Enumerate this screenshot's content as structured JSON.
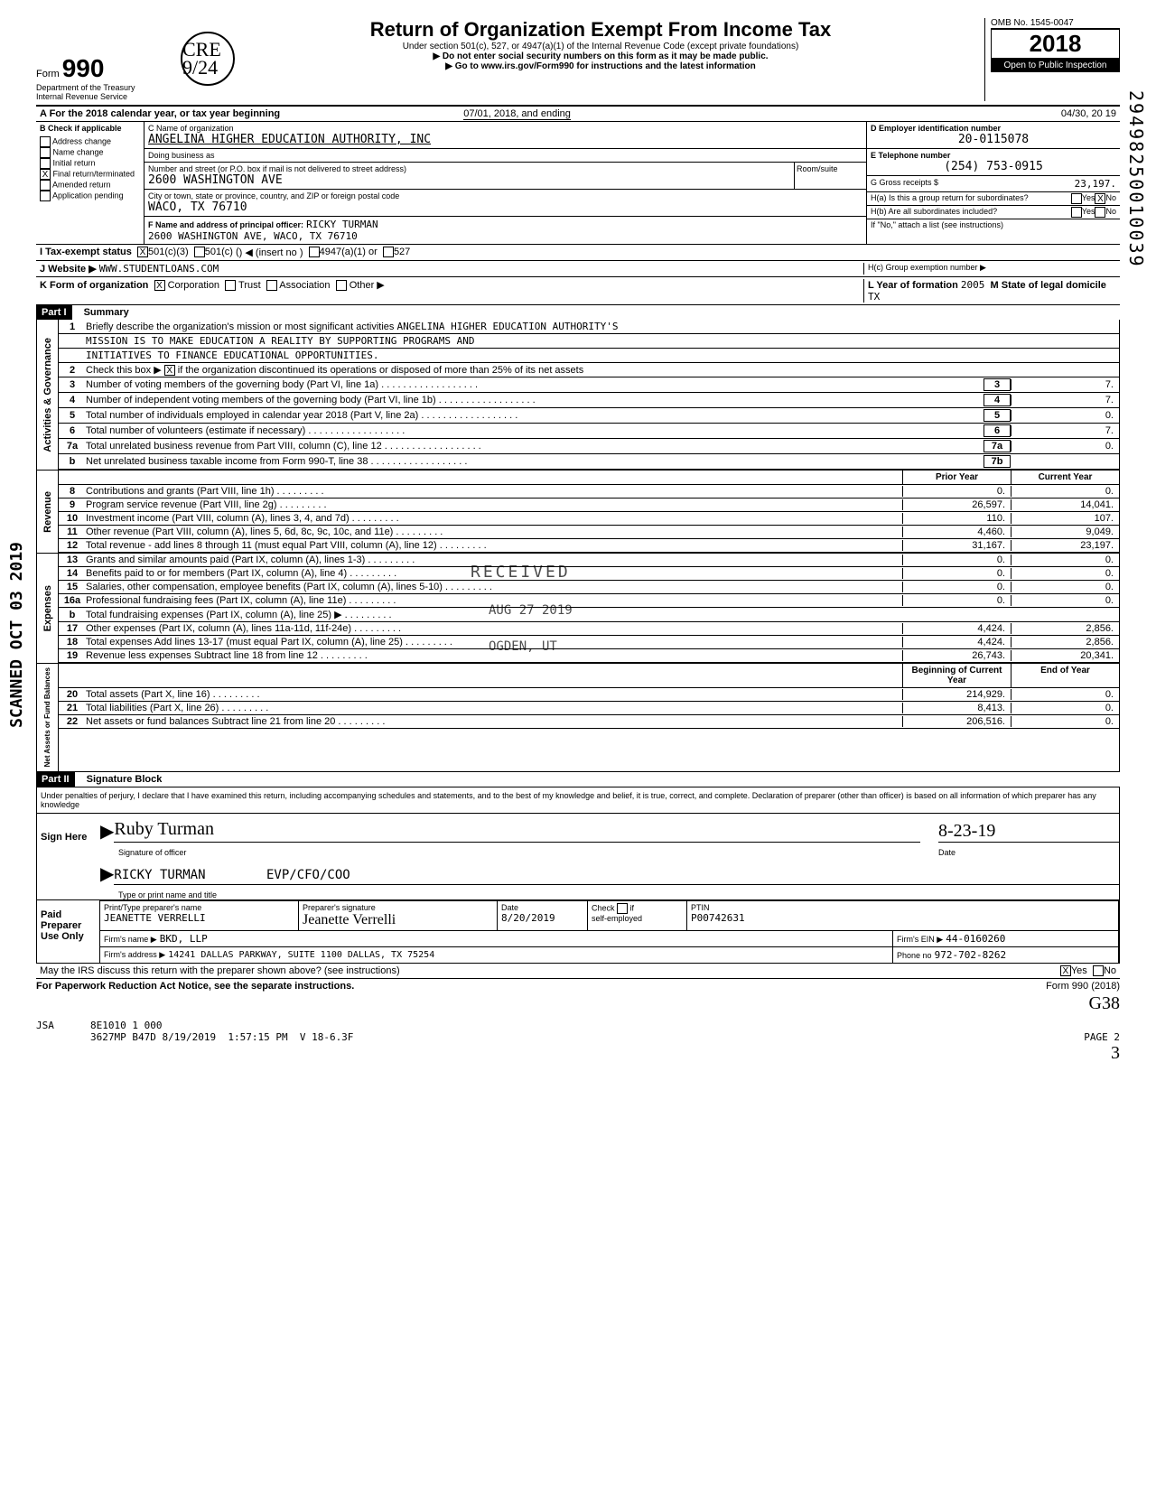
{
  "form_number": "990",
  "form_prefix": "Form",
  "initials_mark": "CRE 9/24",
  "title": "Return of Organization Exempt From Income Tax",
  "subtitle_1": "Under section 501(c), 527, or 4947(a)(1) of the Internal Revenue Code (except private foundations)",
  "subtitle_2": "▶ Do not enter social security numbers on this form as it may be made public.",
  "subtitle_3": "▶ Go to www.irs.gov/Form990 for instructions and the latest information",
  "dept": "Department of the Treasury",
  "irs": "Internal Revenue Service",
  "omb": "OMB No. 1545-0047",
  "tax_year": "2018",
  "open_public": "Open to Public Inspection",
  "right_margin_code": "29498250010039",
  "left_margin_text": "SCANNED OCT 03 2019",
  "section_a": "A  For the 2018 calendar year, or tax year beginning",
  "period_start": "07/01, 2018, and ending",
  "period_end": "04/30, 20 19",
  "section_b_label": "B  Check if applicable",
  "b_opts": [
    "Address change",
    "Name change",
    "Initial return",
    "Final return/terminated",
    "Amended return",
    "Application pending"
  ],
  "b_checked_idx": 3,
  "c_label": "C Name of organization",
  "org_name": "ANGELINA HIGHER EDUCATION AUTHORITY, INC",
  "dba_label": "Doing business as",
  "addr_label": "Number and street (or P.O. box if mail is not delivered to street address)",
  "room_label": "Room/suite",
  "addr": "2600 WASHINGTON AVE",
  "city_label": "City or town, state or province, country, and ZIP or foreign postal code",
  "city": "WACO, TX 76710",
  "d_label": "D Employer identification number",
  "ein": "20-0115078",
  "e_label": "E Telephone number",
  "phone": "(254) 753-0915",
  "f_label": "F Name and address of principal officer:",
  "officer": "RICKY TURMAN",
  "officer_addr": "2600 WASHINGTON AVE, WACO, TX 76710",
  "g_label": "G Gross receipts $",
  "gross": "23,197.",
  "ha_label": "H(a) Is this a group return for subordinates?",
  "hb_label": "H(b) Are all subordinates included?",
  "hc_label": "H(c) Group exemption number ▶",
  "h_note": "If \"No,\" attach a list (see instructions)",
  "yes": "Yes",
  "no": "No",
  "ha_no_checked": "X",
  "i_label": "I   Tax-exempt status",
  "i_501c3": "501(c)(3)",
  "i_501c": "501(c) (",
  "i_insert": ") ◀  (insert no )",
  "i_4947": "4947(a)(1) or",
  "i_527": "527",
  "i_checked": "X",
  "j_label": "J   Website ▶",
  "website": "WWW.STUDENTLOANS.COM",
  "k_label": "K  Form of organization",
  "k_corp": "Corporation",
  "k_trust": "Trust",
  "k_assoc": "Association",
  "k_other": "Other ▶",
  "k_checked": "X",
  "l_label": "L Year of formation",
  "year_formed": "2005",
  "m_label": "M State of legal domicile",
  "state": "TX",
  "part1_hdr": "Part I",
  "part1_title": "Summary",
  "mission_label": "Briefly describe the organization's mission or most significant activities",
  "mission_1": "ANGELINA HIGHER EDUCATION AUTHORITY'S",
  "mission_2": "MISSION IS TO MAKE EDUCATION A REALITY BY SUPPORTING PROGRAMS AND",
  "mission_3": "INITIATIVES TO FINANCE EDUCATIONAL OPPORTUNITIES.",
  "line2_text": "Check this box ▶",
  "line2_suffix": "if the organization discontinued its operations or disposed of more than 25% of its net assets",
  "line2_checked": "X",
  "governance_heading": "Activities & Governance",
  "revenue_heading": "Revenue",
  "expenses_heading": "Expenses",
  "netassets_heading": "Net Assets or Fund Balances",
  "lines_gov": [
    {
      "n": "3",
      "t": "Number of voting members of the governing body (Part VI, line 1a)",
      "box": "3",
      "v": "7."
    },
    {
      "n": "4",
      "t": "Number of independent voting members of the governing body (Part VI, line 1b)",
      "box": "4",
      "v": "7."
    },
    {
      "n": "5",
      "t": "Total number of individuals employed in calendar year 2018 (Part V, line 2a)",
      "box": "5",
      "v": "0."
    },
    {
      "n": "6",
      "t": "Total number of volunteers (estimate if necessary)",
      "box": "6",
      "v": "7."
    },
    {
      "n": "7a",
      "t": "Total unrelated business revenue from Part VIII, column (C), line 12",
      "box": "7a",
      "v": "0."
    },
    {
      "n": "b",
      "t": "Net unrelated business taxable income from Form 990-T, line 38",
      "box": "7b",
      "v": ""
    }
  ],
  "col_prior": "Prior Year",
  "col_current": "Current Year",
  "col_begin": "Beginning of Current Year",
  "col_end": "End of Year",
  "lines_rev": [
    {
      "n": "8",
      "t": "Contributions and grants (Part VIII, line 1h)",
      "p": "0.",
      "c": "0."
    },
    {
      "n": "9",
      "t": "Program service revenue (Part VIII, line 2g)",
      "p": "26,597.",
      "c": "14,041."
    },
    {
      "n": "10",
      "t": "Investment income (Part VIII, column (A), lines 3, 4, and 7d)",
      "p": "110.",
      "c": "107."
    },
    {
      "n": "11",
      "t": "Other revenue (Part VIII, column (A), lines 5, 6d, 8c, 9c, 10c, and 11e)",
      "p": "4,460.",
      "c": "9,049."
    },
    {
      "n": "12",
      "t": "Total revenue - add lines 8 through 11 (must equal Part VIII, column (A), line 12)",
      "p": "31,167.",
      "c": "23,197."
    }
  ],
  "lines_exp": [
    {
      "n": "13",
      "t": "Grants and similar amounts paid (Part IX, column (A), lines 1-3)",
      "p": "0.",
      "c": "0."
    },
    {
      "n": "14",
      "t": "Benefits paid to or for members (Part IX, column (A), line 4)",
      "p": "0.",
      "c": "0."
    },
    {
      "n": "15",
      "t": "Salaries, other compensation, employee benefits (Part IX, column (A), lines 5-10)",
      "p": "0.",
      "c": "0."
    },
    {
      "n": "16a",
      "t": "Professional fundraising fees (Part IX, column (A), line 11e)",
      "p": "0.",
      "c": "0."
    },
    {
      "n": "b",
      "t": "Total fundraising expenses (Part IX, column (A), line 25) ▶",
      "p": "",
      "c": ""
    },
    {
      "n": "17",
      "t": "Other expenses (Part IX, column (A), lines 11a-11d, 11f-24e)",
      "p": "4,424.",
      "c": "2,856."
    },
    {
      "n": "18",
      "t": "Total expenses Add lines 13-17 (must equal Part IX, column (A), line 25)",
      "p": "4,424.",
      "c": "2,856."
    },
    {
      "n": "19",
      "t": "Revenue less expenses Subtract line 18 from line 12",
      "p": "26,743.",
      "c": "20,341."
    }
  ],
  "lines_net": [
    {
      "n": "20",
      "t": "Total assets (Part X, line 16)",
      "p": "214,929.",
      "c": "0."
    },
    {
      "n": "21",
      "t": "Total liabilities (Part X, line 26)",
      "p": "8,413.",
      "c": "0."
    },
    {
      "n": "22",
      "t": "Net assets or fund balances Subtract line 21 from line 20",
      "p": "206,516.",
      "c": "0."
    }
  ],
  "stamp_received": "RECEIVED",
  "stamp_date": "AUG 27 2019",
  "stamp_ogden": "OGDEN, UT",
  "part2_hdr": "Part II",
  "part2_title": "Signature Block",
  "perjury": "Under penalties of perjury, I declare that I have examined this return, including accompanying schedules and statements, and to the best of my knowledge and belief, it is true, correct, and complete. Declaration of preparer (other than officer) is based on all information of which preparer has any knowledge",
  "sign_here": "Sign Here",
  "sig_officer": "Ruby Turman",
  "sig_label": "Signature of officer",
  "sig_date_label": "Date",
  "sig_date": "8-23-19",
  "officer_name": "RICKY TURMAN",
  "officer_title": "EVP/CFO/COO",
  "type_label": "Type or print name and title",
  "paid_label": "Paid Preparer Use Only",
  "prep_name_label": "Print/Type preparer's name",
  "prep_name": "JEANETTE VERRELLI",
  "prep_sig_label": "Preparer's signature",
  "prep_sig": "Jeanette Verrelli",
  "prep_date_label": "Date",
  "prep_date": "8/20/2019",
  "check_if_label": "Check",
  "self_emp_label": "self-employed",
  "if_label": "if",
  "ptin_label": "PTIN",
  "ptin": "P00742631",
  "firm_name_label": "Firm's name ▶",
  "firm_name": "BKD, LLP",
  "firm_ein_label": "Firm's EIN ▶",
  "firm_ein": "44-0160260",
  "firm_addr_label": "Firm's address ▶",
  "firm_addr": "14241 DALLAS PARKWAY, SUITE 1100 DALLAS, TX 75254",
  "phone_label": "Phone no",
  "firm_phone": "972-702-8262",
  "discuss_label": "May the IRS discuss this return with the preparer shown above? (see instructions)",
  "discuss_yes": "X",
  "paperwork": "For Paperwork Reduction Act Notice, see the separate instructions.",
  "form_footer": "Form 990 (2018)",
  "handnote": "G38",
  "footer_jsa": "JSA",
  "footer_code": "8E1010 1 000",
  "footer_batch": "3627MP B47D",
  "footer_date": "8/19/2019",
  "footer_time": "1:57:15 PM",
  "footer_ver": "V 18-6.3F",
  "footer_page": "PAGE 2",
  "footer_hand": "3"
}
